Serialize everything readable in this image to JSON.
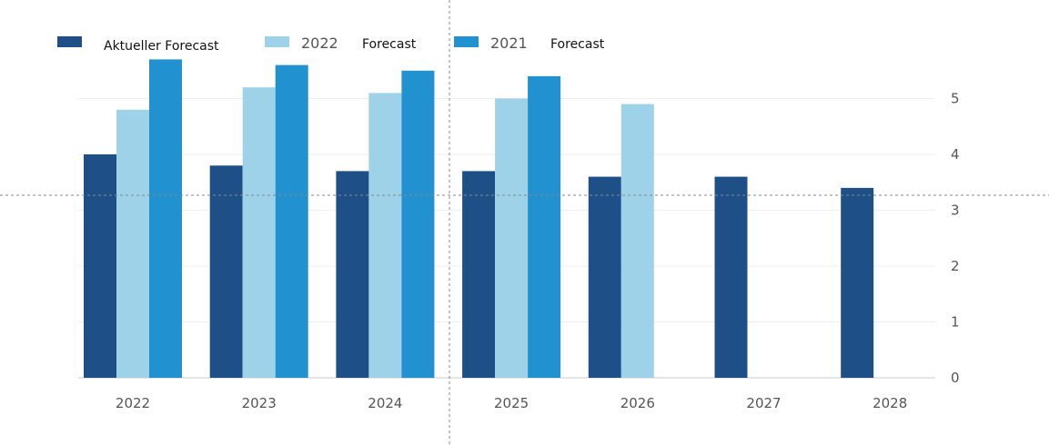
{
  "chart_data": {
    "type": "bar",
    "categories": [
      "2022",
      "2023",
      "2024",
      "2025",
      "2026",
      "2027",
      "2028"
    ],
    "series": [
      {
        "name": "Aktueller Forecast",
        "color": "#1f4f87",
        "values": [
          4.0,
          3.8,
          3.7,
          3.7,
          3.6,
          3.6,
          3.4
        ]
      },
      {
        "name": "2022 Forecast",
        "color": "#9dd2e8",
        "values": [
          4.8,
          5.2,
          5.1,
          5.0,
          4.9,
          null,
          null
        ]
      },
      {
        "name": "2021 Forecast",
        "color": "#2192cf",
        "values": [
          5.7,
          5.6,
          5.5,
          5.4,
          null,
          null,
          null
        ]
      }
    ],
    "y_ticks": [
      "0",
      "1",
      "2",
      "3",
      "4",
      "5"
    ],
    "ylim": [
      0,
      5.7
    ],
    "y_axis_side": "right",
    "grid": true,
    "legend": {
      "placement": "top-left",
      "items": [
        {
          "parts": [
            "Aktueller Forecast"
          ]
        },
        {
          "parts": [
            "2022",
            "Forecast"
          ]
        },
        {
          "parts": [
            "2021",
            "Forecast"
          ]
        }
      ]
    }
  }
}
